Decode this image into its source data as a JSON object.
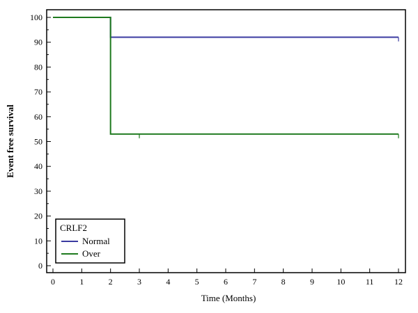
{
  "chart_data": {
    "type": "line",
    "step": true,
    "xlabel": "Time (Months)",
    "ylabel": "Event free survival",
    "xlim": [
      0,
      12
    ],
    "ylim": [
      0,
      100
    ],
    "x_ticks": [
      0,
      1,
      2,
      3,
      4,
      5,
      6,
      7,
      8,
      9,
      10,
      11,
      12
    ],
    "y_ticks": [
      0,
      10,
      20,
      30,
      40,
      50,
      60,
      70,
      80,
      90,
      100
    ],
    "grid": false,
    "legend": {
      "title": "CRLF2",
      "placement": "bottom-left",
      "entries": [
        "Normal",
        "Over"
      ]
    },
    "series": [
      {
        "name": "Normal",
        "color": "#3a3aa0",
        "steps": [
          {
            "x": 0,
            "y": 100
          },
          {
            "x": 2,
            "y": 92
          },
          {
            "x": 12,
            "y": 92
          }
        ],
        "censor_x": [
          12
        ]
      },
      {
        "name": "Over",
        "color": "#1e7a1e",
        "steps": [
          {
            "x": 0,
            "y": 100
          },
          {
            "x": 2,
            "y": 53
          },
          {
            "x": 12,
            "y": 53
          }
        ],
        "censor_x": [
          3,
          12
        ]
      }
    ]
  }
}
